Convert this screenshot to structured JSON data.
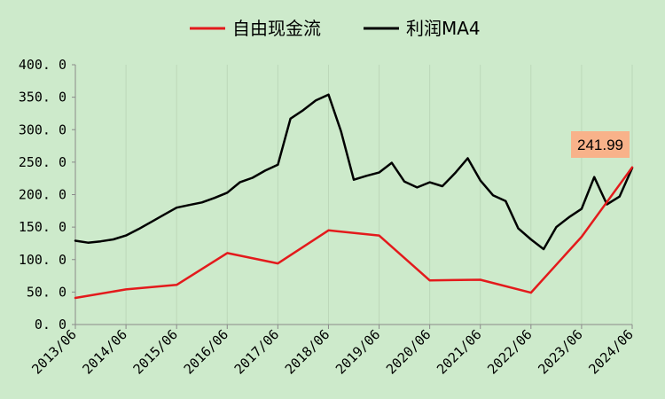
{
  "chart_data": {
    "type": "line",
    "title": "",
    "xlabel": "",
    "ylabel": "",
    "ylim": [
      0,
      400
    ],
    "y_ticks": [
      "400. 0",
      "350. 0",
      "300. 0",
      "250. 0",
      "200. 0",
      "150. 0",
      "100. 0",
      "50. 0",
      "0. 0"
    ],
    "x_ticks": [
      "2013/06",
      "2014/06",
      "2015/06",
      "2016/06",
      "2017/06",
      "2018/06",
      "2019/06",
      "2020/06",
      "2021/06",
      "2022/06",
      "2023/06",
      "2024/06"
    ],
    "grid": "vertical",
    "legend_position": "top",
    "series": [
      {
        "name": "自由现金流",
        "color": "#e31a1c",
        "points": [
          [
            2013.5,
            41
          ],
          [
            2014.5,
            54
          ],
          [
            2015.5,
            61
          ],
          [
            2016.5,
            110
          ],
          [
            2017.5,
            94
          ],
          [
            2018.5,
            145
          ],
          [
            2019.5,
            137
          ],
          [
            2020.5,
            68
          ],
          [
            2021.5,
            69
          ],
          [
            2022.5,
            49
          ],
          [
            2023.5,
            135
          ],
          [
            2024.5,
            241.99
          ]
        ]
      },
      {
        "name": "利润MA4",
        "color": "#000000",
        "points": [
          [
            2013.5,
            129
          ],
          [
            2013.75,
            126
          ],
          [
            2014.0,
            128
          ],
          [
            2014.25,
            131
          ],
          [
            2014.5,
            137
          ],
          [
            2014.75,
            147
          ],
          [
            2015.0,
            158
          ],
          [
            2015.25,
            169
          ],
          [
            2015.5,
            180
          ],
          [
            2015.75,
            184
          ],
          [
            2016.0,
            188
          ],
          [
            2016.25,
            195
          ],
          [
            2016.5,
            203
          ],
          [
            2016.75,
            219
          ],
          [
            2017.0,
            226
          ],
          [
            2017.25,
            237
          ],
          [
            2017.5,
            246
          ],
          [
            2017.75,
            317
          ],
          [
            2018.0,
            330
          ],
          [
            2018.25,
            345
          ],
          [
            2018.5,
            354
          ],
          [
            2018.75,
            297
          ],
          [
            2019.0,
            223
          ],
          [
            2019.25,
            229
          ],
          [
            2019.5,
            234
          ],
          [
            2019.75,
            249
          ],
          [
            2020.0,
            220
          ],
          [
            2020.25,
            211
          ],
          [
            2020.5,
            219
          ],
          [
            2020.75,
            213
          ],
          [
            2021.0,
            233
          ],
          [
            2021.25,
            256
          ],
          [
            2021.5,
            222
          ],
          [
            2021.75,
            199
          ],
          [
            2022.0,
            190
          ],
          [
            2022.25,
            148
          ],
          [
            2022.5,
            131
          ],
          [
            2022.75,
            116
          ],
          [
            2023.0,
            150
          ],
          [
            2023.25,
            165
          ],
          [
            2023.5,
            178
          ],
          [
            2023.75,
            227
          ],
          [
            2024.0,
            185
          ],
          [
            2024.25,
            197
          ],
          [
            2024.5,
            241
          ]
        ]
      }
    ],
    "annotation": {
      "text": "241.99",
      "x": 2024.5,
      "y": 241.99,
      "color": "#f8b28a"
    }
  }
}
